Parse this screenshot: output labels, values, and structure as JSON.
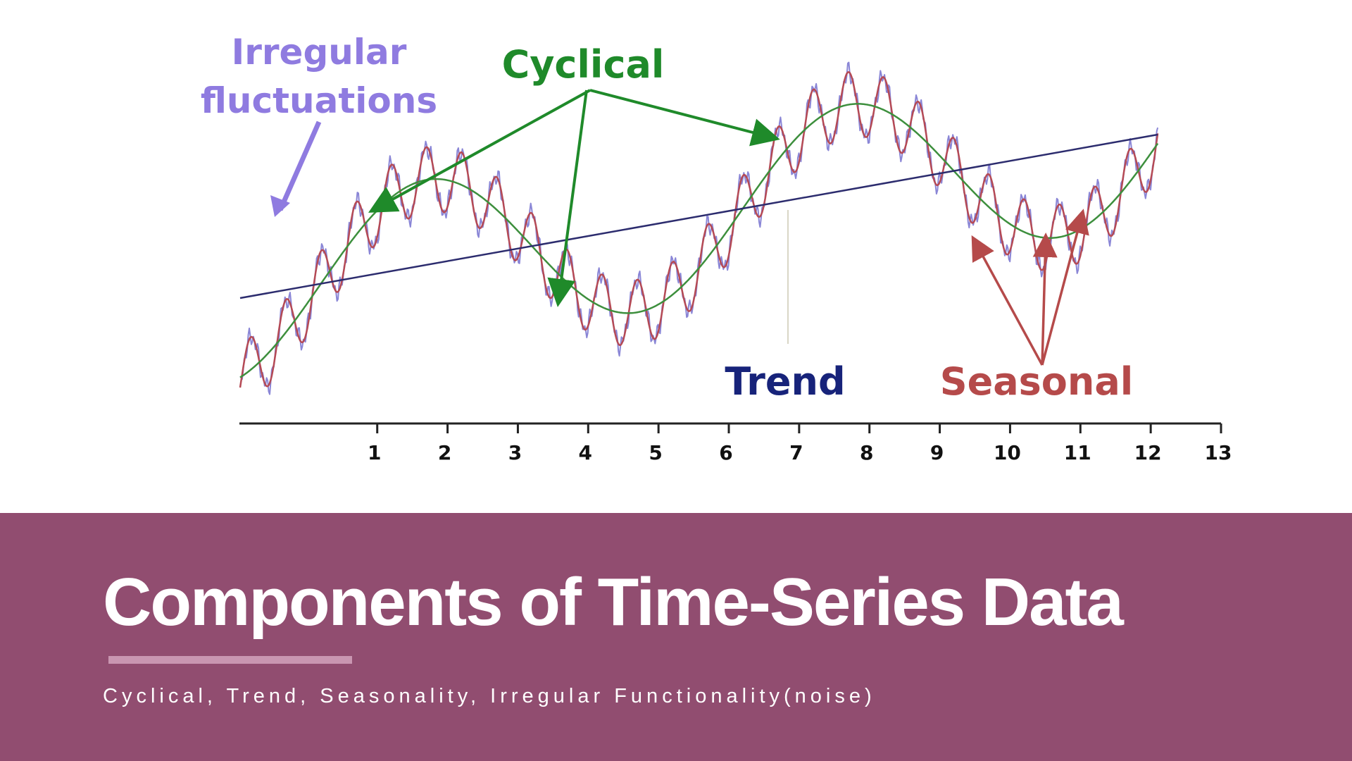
{
  "slide": {
    "title": "Components of Time-Series Data",
    "subtitle": "Cyclical, Trend, Seasonality, Irregular Functionality(noise)",
    "band_color": "#914d70",
    "rule_color": "#c996b1"
  },
  "chart_data": {
    "type": "line",
    "x_ticks": [
      1,
      2,
      3,
      4,
      5,
      6,
      7,
      8,
      9,
      10,
      11,
      12,
      13
    ],
    "xlim": [
      -0.95,
      13
    ],
    "series": [
      {
        "name": "Trend",
        "color": "#2c2c6e",
        "kind": "linear",
        "start": [
          -0.95,
          0.0
        ],
        "end": [
          12.1,
          1.0
        ]
      },
      {
        "name": "Cyclical",
        "color": "#3d8f3d",
        "kind": "sine",
        "period": 6.0,
        "peak_x": 1.7,
        "amplitude": 0.52
      },
      {
        "name": "Seasonal",
        "color": "#b54a55",
        "kind": "sine",
        "period": 0.5,
        "amplitude": 0.2
      },
      {
        "name": "Irregular fluctuations",
        "color": "#8a86d6",
        "kind": "noise",
        "amplitude": 0.07
      }
    ],
    "annotations": [
      {
        "key": "irregular",
        "lines": [
          "Irregular",
          "fluctuations"
        ],
        "color": "#8f7be0"
      },
      {
        "key": "cyclical",
        "lines": [
          "Cyclical"
        ],
        "color": "#1f8a2a"
      },
      {
        "key": "trend",
        "lines": [
          "Trend"
        ],
        "color": "#17237a"
      },
      {
        "key": "seasonal",
        "lines": [
          "Seasonal"
        ],
        "color": "#b54a4a"
      }
    ]
  }
}
